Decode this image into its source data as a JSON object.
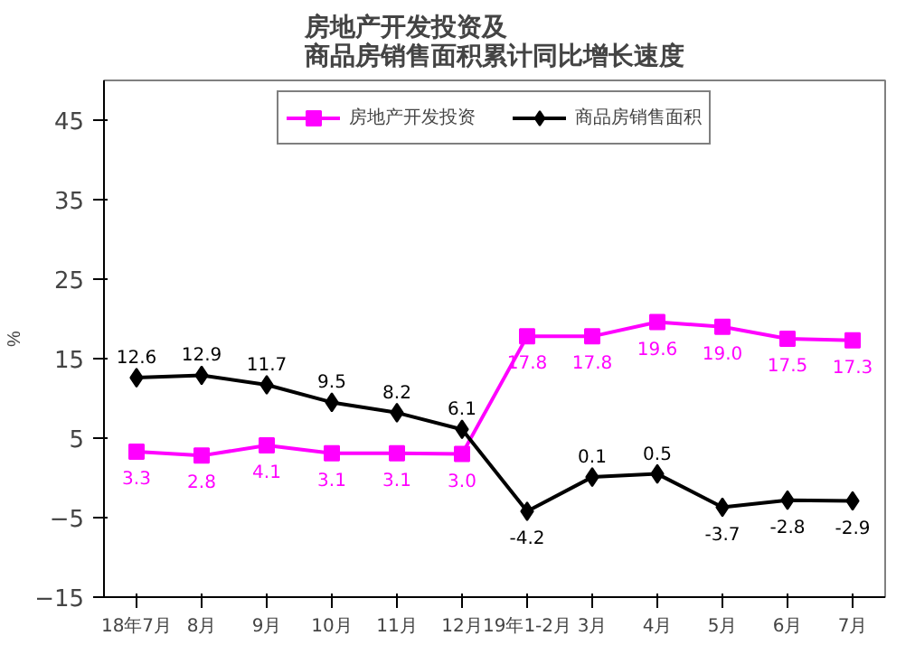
{
  "chart_data": {
    "type": "line",
    "title": "房地产开发投资及商品房销售面积累计同比增长速度",
    "ylabel": "%",
    "categories": [
      "18年7月",
      "8月",
      "9月",
      "10月",
      "11月",
      "12月",
      "19年1-2月",
      "3月",
      "4月",
      "5月",
      "6月",
      "7月"
    ],
    "series": [
      {
        "name": "房地产开发投资",
        "color": "#ff00ff",
        "marker": "square",
        "values": [
          3.3,
          2.8,
          4.1,
          3.1,
          3.1,
          3.0,
          17.8,
          17.8,
          19.6,
          19.0,
          17.5,
          17.3
        ],
        "value_labels": [
          "3.3",
          "2.8",
          "4.1",
          "3.1",
          "3.1",
          "3.0",
          "17.8",
          "17.8",
          "19.6",
          "19.0",
          "17.5",
          "17.3"
        ]
      },
      {
        "name": "商品房销售面积",
        "color": "#000000",
        "marker": "diamond",
        "values": [
          12.6,
          12.9,
          11.7,
          9.5,
          8.2,
          6.1,
          -4.2,
          0.1,
          0.5,
          -3.7,
          -2.8,
          -2.9
        ],
        "value_labels": [
          "12.6",
          "12.9",
          "11.7",
          "9.5",
          "8.2",
          "6.1",
          "-4.2",
          "0.1",
          "0.5",
          "-3.7",
          "-2.8",
          "-2.9"
        ]
      }
    ],
    "ylim": [
      -15,
      50
    ],
    "yticks": [
      -15,
      -5,
      5,
      15,
      25,
      35,
      45
    ],
    "grid": false,
    "legend": "top",
    "line_style": "solid"
  }
}
